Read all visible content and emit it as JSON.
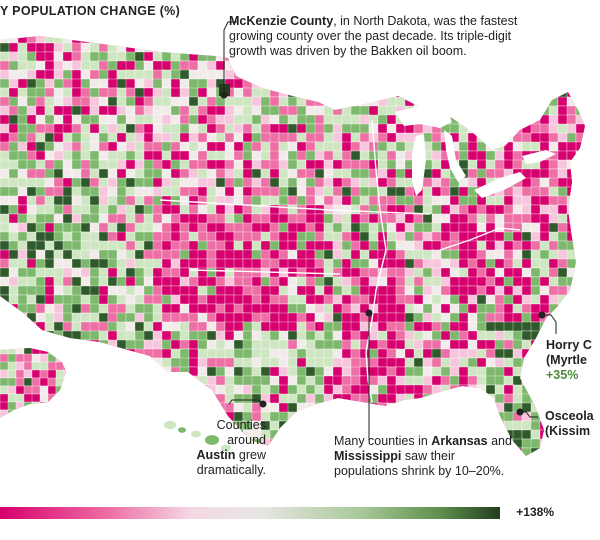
{
  "title": "Y POPULATION CHANGE (%)",
  "colors": {
    "decline_strong": "#d6006e",
    "decline_mid": "#ee6fa5",
    "decline_light": "#f7c6dc",
    "neutral": "#f1ecea",
    "growth_light": "#cfe6c2",
    "growth_mid": "#7db86c",
    "growth_strong": "#2f5a2c",
    "scale_max": "#243d20"
  },
  "annotations": {
    "mckenzie": {
      "name": "McKenzie County",
      "text": ", in North Dakota, was the fastest growing county over the past decade. Its triple-digit growth was driven by the Bakken oil boom."
    },
    "horry": {
      "name": "Horry C",
      "sub": "(Myrtle",
      "pct": "+35%"
    },
    "osceola": {
      "name": "Osceola",
      "sub": "(Kissim"
    },
    "austin": {
      "pre": "Counties around",
      "name": "Austin",
      "post": "grew dramatically."
    },
    "arkansas": {
      "pre": "Many counties in",
      "name1": "Arkansas",
      "mid": "and",
      "name2": "Mississippi",
      "post": "saw their populations shrink by 10–20%."
    }
  },
  "scale": {
    "max_label": "+138%"
  }
}
